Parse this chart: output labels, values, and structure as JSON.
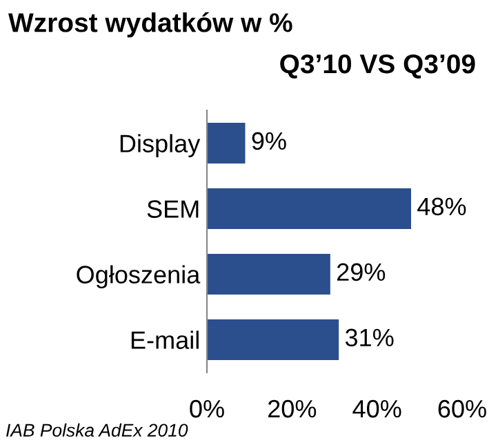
{
  "chart_data": {
    "type": "bar",
    "orientation": "horizontal",
    "title": "Wzrost wydatków w %",
    "subtitle": "Q3’10 VS Q3’09",
    "categories": [
      "Display",
      "SEM",
      "Ogłoszenia",
      "E-mail"
    ],
    "values": [
      9,
      48,
      29,
      31
    ],
    "color": "#2b4f8c",
    "value_labels": [
      "9%",
      "48%",
      "29%",
      "31%"
    ],
    "xlim": [
      0,
      60
    ],
    "xticks": [
      {
        "value": 0,
        "label": "0%"
      },
      {
        "value": 20,
        "label": "20%"
      },
      {
        "value": 40,
        "label": "40%"
      },
      {
        "value": 60,
        "label": "60%"
      }
    ],
    "grid": false,
    "legend": false,
    "annotations": [
      "IAB Polska AdEx 2010"
    ]
  }
}
